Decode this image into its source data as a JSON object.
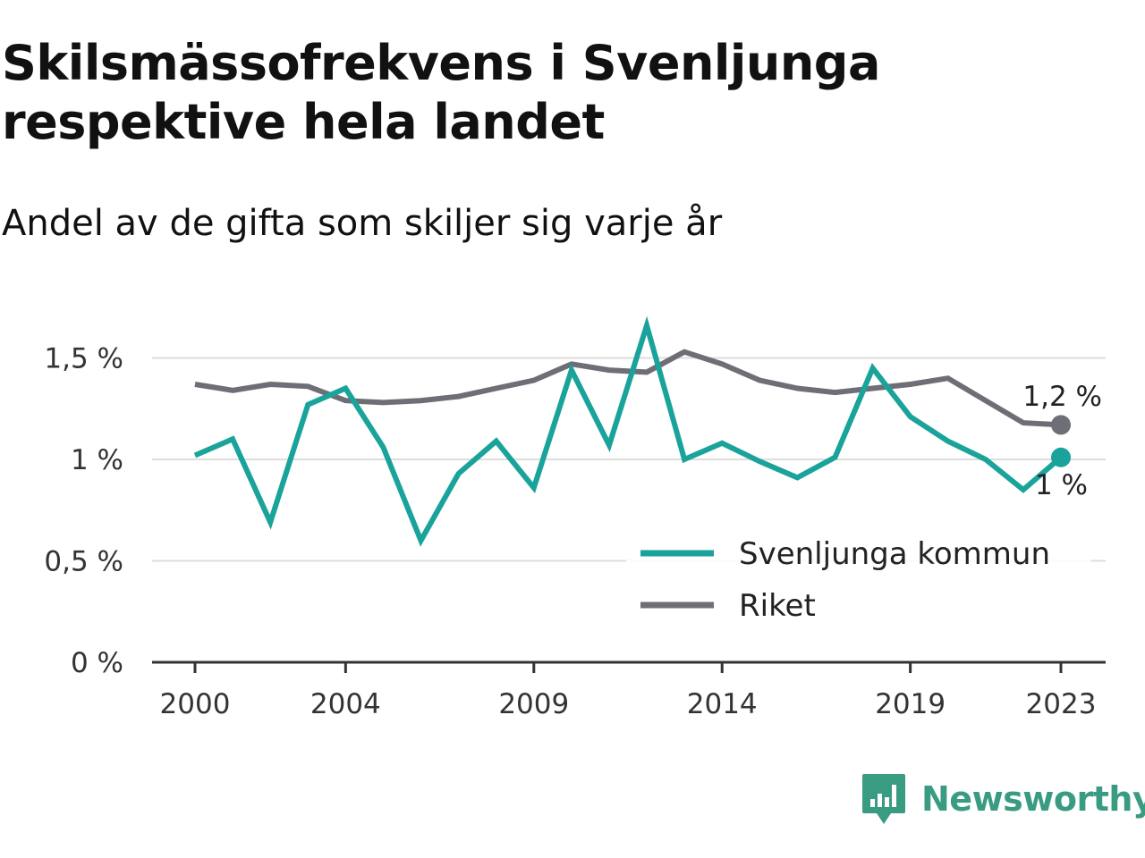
{
  "title": "Skilsmässofrekvens i Svenljunga respektive hela landet",
  "subtitle": "Andel av de gifta som skiljer sig varje år",
  "brand": {
    "name": "Newsworthy",
    "icon": "newsworthy-logo-icon",
    "color": "#3a9b83"
  },
  "chart_data": {
    "type": "line",
    "x": [
      2000,
      2001,
      2002,
      2003,
      2004,
      2005,
      2006,
      2007,
      2008,
      2009,
      2010,
      2011,
      2012,
      2013,
      2014,
      2015,
      2016,
      2017,
      2018,
      2019,
      2020,
      2021,
      2022,
      2023
    ],
    "x_ticks": [
      2000,
      2004,
      2009,
      2014,
      2019,
      2023
    ],
    "x_tick_labels": [
      "2000",
      "2004",
      "2009",
      "2014",
      "2019",
      "2023"
    ],
    "ylim": [
      0,
      1.7
    ],
    "y_ticks": [
      0,
      0.5,
      1,
      1.5
    ],
    "y_tick_labels": [
      "0 %",
      "0,5 %",
      "1 %",
      "1,5 %"
    ],
    "grid": true,
    "legend_position": "bottom-right",
    "series": [
      {
        "name": "Svenljunga kommun",
        "color": "#1aa39a",
        "values": [
          1.02,
          1.1,
          0.69,
          1.27,
          1.35,
          1.06,
          0.6,
          0.93,
          1.09,
          0.86,
          1.44,
          1.07,
          1.66,
          1.0,
          1.08,
          0.99,
          0.91,
          1.01,
          1.45,
          1.21,
          1.09,
          1.0,
          0.85,
          1.01
        ],
        "end_label": "1 %"
      },
      {
        "name": "Riket",
        "color": "#6e6e76",
        "values": [
          1.37,
          1.34,
          1.37,
          1.36,
          1.29,
          1.28,
          1.29,
          1.31,
          1.35,
          1.39,
          1.47,
          1.44,
          1.43,
          1.53,
          1.47,
          1.39,
          1.35,
          1.33,
          1.35,
          1.37,
          1.4,
          1.29,
          1.18,
          1.17
        ],
        "end_label": "1,2 %"
      }
    ]
  }
}
